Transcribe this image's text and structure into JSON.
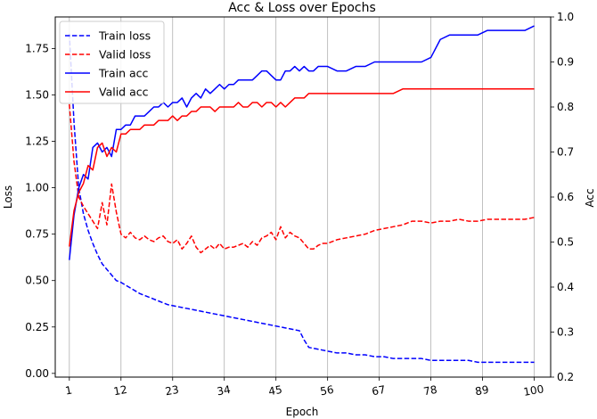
{
  "chart_data": {
    "type": "line",
    "title": "Acc & Loss over Epochs",
    "xlabel": "Epoch",
    "ylabel_left": "Loss",
    "ylabel_right": "Acc",
    "xlim": [
      -2,
      103.5
    ],
    "ylim_left": [
      -0.02,
      1.92
    ],
    "ylim_right": [
      0.2,
      1.0
    ],
    "xticks": [
      1,
      12,
      23,
      34,
      45,
      56,
      67,
      78,
      89,
      100
    ],
    "xtick_rotation_deg": -10,
    "yticks_left": [
      0.0,
      0.25,
      0.5,
      0.75,
      1.0,
      1.25,
      1.5,
      1.75
    ],
    "yticks_right": [
      0.2,
      0.3,
      0.4,
      0.5,
      0.6,
      0.7,
      0.8,
      0.9,
      1.0
    ],
    "grid": "vertical-at-xticks",
    "legend_position": "top-left",
    "colors": {
      "blue": "#0000ff",
      "red": "#ff0000",
      "grid": "#b0b0b0"
    },
    "series": [
      {
        "name": "Train loss",
        "axis": "left",
        "color": "#0000ff",
        "style": "dashed",
        "x": [
          1,
          2,
          3,
          4,
          5,
          6,
          7,
          8,
          9,
          10,
          11,
          12,
          14,
          16,
          18,
          20,
          22,
          24,
          26,
          28,
          30,
          32,
          34,
          36,
          38,
          40,
          42,
          44,
          46,
          48,
          50,
          51,
          52,
          54,
          56,
          58,
          60,
          62,
          64,
          66,
          68,
          70,
          72,
          74,
          76,
          78,
          80,
          82,
          84,
          86,
          88,
          90,
          92,
          94,
          96,
          98,
          100
        ],
        "values": [
          1.83,
          1.35,
          1.0,
          0.86,
          0.77,
          0.7,
          0.64,
          0.59,
          0.56,
          0.53,
          0.5,
          0.49,
          0.46,
          0.43,
          0.41,
          0.39,
          0.37,
          0.36,
          0.35,
          0.34,
          0.33,
          0.32,
          0.31,
          0.3,
          0.29,
          0.28,
          0.27,
          0.26,
          0.25,
          0.24,
          0.23,
          0.18,
          0.14,
          0.13,
          0.12,
          0.11,
          0.11,
          0.1,
          0.1,
          0.09,
          0.09,
          0.08,
          0.08,
          0.08,
          0.08,
          0.07,
          0.07,
          0.07,
          0.07,
          0.07,
          0.06,
          0.06,
          0.06,
          0.06,
          0.06,
          0.06,
          0.06
        ]
      },
      {
        "name": "Valid loss",
        "axis": "left",
        "color": "#ff0000",
        "style": "dashed",
        "x": [
          1,
          2,
          3,
          4,
          5,
          6,
          7,
          8,
          9,
          10,
          11,
          12,
          13,
          14,
          15,
          16,
          17,
          18,
          19,
          20,
          21,
          22,
          23,
          24,
          25,
          26,
          27,
          28,
          29,
          30,
          31,
          32,
          33,
          34,
          35,
          36,
          37,
          38,
          39,
          40,
          41,
          42,
          43,
          44,
          45,
          46,
          47,
          48,
          49,
          50,
          51,
          52,
          53,
          54,
          55,
          56,
          58,
          60,
          62,
          64,
          66,
          68,
          70,
          72,
          74,
          76,
          78,
          80,
          82,
          84,
          86,
          88,
          90,
          92,
          94,
          96,
          98,
          100
        ],
        "values": [
          1.45,
          1.14,
          0.95,
          0.9,
          0.86,
          0.82,
          0.78,
          0.92,
          0.8,
          1.02,
          0.87,
          0.75,
          0.73,
          0.76,
          0.73,
          0.72,
          0.74,
          0.72,
          0.71,
          0.73,
          0.74,
          0.71,
          0.7,
          0.72,
          0.67,
          0.7,
          0.74,
          0.68,
          0.65,
          0.67,
          0.69,
          0.67,
          0.7,
          0.67,
          0.68,
          0.68,
          0.69,
          0.7,
          0.68,
          0.71,
          0.69,
          0.73,
          0.74,
          0.76,
          0.72,
          0.79,
          0.73,
          0.76,
          0.74,
          0.73,
          0.7,
          0.67,
          0.67,
          0.69,
          0.7,
          0.7,
          0.72,
          0.73,
          0.74,
          0.75,
          0.77,
          0.78,
          0.79,
          0.8,
          0.82,
          0.82,
          0.81,
          0.82,
          0.82,
          0.83,
          0.82,
          0.82,
          0.83,
          0.83,
          0.83,
          0.83,
          0.83,
          0.84
        ]
      },
      {
        "name": "Train acc",
        "axis": "right",
        "color": "#0000ff",
        "style": "solid",
        "x": [
          1,
          2,
          3,
          4,
          5,
          6,
          7,
          8,
          9,
          10,
          11,
          12,
          13,
          14,
          15,
          16,
          17,
          18,
          19,
          20,
          21,
          22,
          23,
          24,
          25,
          26,
          27,
          28,
          29,
          30,
          31,
          32,
          33,
          34,
          35,
          36,
          37,
          38,
          39,
          40,
          41,
          42,
          43,
          44,
          45,
          46,
          47,
          48,
          49,
          50,
          51,
          52,
          53,
          54,
          55,
          56,
          58,
          60,
          62,
          64,
          66,
          68,
          70,
          72,
          74,
          76,
          78,
          80,
          82,
          84,
          86,
          88,
          90,
          92,
          94,
          96,
          98,
          100
        ],
        "values": [
          0.46,
          0.56,
          0.62,
          0.65,
          0.64,
          0.71,
          0.72,
          0.7,
          0.71,
          0.69,
          0.75,
          0.75,
          0.76,
          0.76,
          0.78,
          0.78,
          0.78,
          0.79,
          0.8,
          0.8,
          0.81,
          0.8,
          0.81,
          0.81,
          0.82,
          0.8,
          0.82,
          0.83,
          0.82,
          0.84,
          0.83,
          0.84,
          0.85,
          0.84,
          0.85,
          0.85,
          0.86,
          0.86,
          0.86,
          0.86,
          0.87,
          0.88,
          0.88,
          0.87,
          0.86,
          0.86,
          0.88,
          0.88,
          0.89,
          0.88,
          0.89,
          0.88,
          0.88,
          0.89,
          0.89,
          0.89,
          0.88,
          0.88,
          0.89,
          0.89,
          0.9,
          0.9,
          0.9,
          0.9,
          0.9,
          0.9,
          0.91,
          0.95,
          0.96,
          0.96,
          0.96,
          0.96,
          0.97,
          0.97,
          0.97,
          0.97,
          0.97,
          0.98
        ]
      },
      {
        "name": "Valid acc",
        "axis": "right",
        "color": "#ff0000",
        "style": "solid",
        "x": [
          1,
          2,
          3,
          4,
          5,
          6,
          7,
          8,
          9,
          10,
          11,
          12,
          13,
          14,
          15,
          16,
          17,
          18,
          19,
          20,
          21,
          22,
          23,
          24,
          25,
          26,
          27,
          28,
          29,
          30,
          31,
          32,
          33,
          34,
          35,
          36,
          37,
          38,
          39,
          40,
          41,
          42,
          43,
          44,
          45,
          46,
          47,
          48,
          49,
          50,
          51,
          52,
          53,
          54,
          55,
          56,
          58,
          60,
          62,
          64,
          66,
          68,
          70,
          72,
          74,
          76,
          78,
          80,
          82,
          84,
          86,
          88,
          90,
          92,
          94,
          96,
          98,
          100
        ],
        "values": [
          0.49,
          0.57,
          0.61,
          0.63,
          0.67,
          0.66,
          0.71,
          0.72,
          0.69,
          0.71,
          0.7,
          0.74,
          0.74,
          0.75,
          0.75,
          0.75,
          0.76,
          0.76,
          0.76,
          0.77,
          0.77,
          0.77,
          0.78,
          0.77,
          0.78,
          0.78,
          0.79,
          0.79,
          0.8,
          0.8,
          0.8,
          0.79,
          0.8,
          0.8,
          0.8,
          0.8,
          0.81,
          0.8,
          0.8,
          0.81,
          0.81,
          0.8,
          0.81,
          0.81,
          0.8,
          0.81,
          0.8,
          0.81,
          0.82,
          0.82,
          0.82,
          0.83,
          0.83,
          0.83,
          0.83,
          0.83,
          0.83,
          0.83,
          0.83,
          0.83,
          0.83,
          0.83,
          0.83,
          0.84,
          0.84,
          0.84,
          0.84,
          0.84,
          0.84,
          0.84,
          0.84,
          0.84,
          0.84,
          0.84,
          0.84,
          0.84,
          0.84,
          0.84
        ]
      }
    ]
  }
}
